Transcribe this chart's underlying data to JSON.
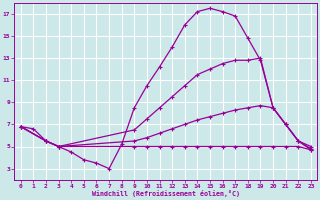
{
  "background_color": "#cce8e8",
  "grid_color": "#ffffff",
  "line_color": "#990099",
  "xlabel": "Windchill (Refroidissement éolien,°C)",
  "xlim": [
    -0.5,
    23.5
  ],
  "ylim": [
    2.0,
    18.0
  ],
  "xticks": [
    0,
    1,
    2,
    3,
    4,
    5,
    6,
    7,
    8,
    9,
    10,
    11,
    12,
    13,
    14,
    15,
    16,
    17,
    18,
    19,
    20,
    21,
    22,
    23
  ],
  "yticks": [
    3,
    5,
    7,
    9,
    11,
    13,
    15,
    17
  ],
  "curve1_x": [
    0,
    1,
    2,
    3,
    4,
    5,
    6,
    7,
    8,
    9,
    10,
    11,
    12,
    13,
    14,
    15,
    16,
    17,
    18,
    19,
    20,
    21,
    22,
    23
  ],
  "curve1_y": [
    6.8,
    6.6,
    5.5,
    5.0,
    4.5,
    3.8,
    3.5,
    3.0,
    5.2,
    8.5,
    10.5,
    12.2,
    14.0,
    16.0,
    17.2,
    17.5,
    17.2,
    16.8,
    14.8,
    12.8,
    8.5,
    7.0,
    5.5,
    4.7
  ],
  "curve2_x": [
    0,
    2,
    3,
    9,
    10,
    11,
    12,
    13,
    14,
    15,
    16,
    17,
    18,
    19,
    20,
    21,
    22,
    23
  ],
  "curve2_y": [
    6.8,
    5.5,
    5.0,
    6.5,
    7.5,
    8.5,
    9.5,
    10.5,
    11.5,
    12.0,
    12.5,
    12.8,
    12.8,
    13.0,
    8.5,
    7.0,
    5.5,
    4.8
  ],
  "curve3_x": [
    0,
    2,
    3,
    9,
    10,
    11,
    12,
    13,
    14,
    15,
    16,
    17,
    18,
    19,
    20,
    21,
    22,
    23
  ],
  "curve3_y": [
    6.8,
    5.5,
    5.0,
    5.5,
    5.8,
    6.2,
    6.6,
    7.0,
    7.4,
    7.7,
    8.0,
    8.3,
    8.5,
    8.7,
    8.5,
    7.0,
    5.5,
    5.0
  ],
  "curve4_x": [
    0,
    2,
    3,
    9,
    10,
    11,
    12,
    13,
    14,
    15,
    16,
    17,
    18,
    19,
    20,
    21,
    22,
    23
  ],
  "curve4_y": [
    6.8,
    5.5,
    5.0,
    5.0,
    5.0,
    5.0,
    5.0,
    5.0,
    5.0,
    5.0,
    5.0,
    5.0,
    5.0,
    5.0,
    5.0,
    5.0,
    5.0,
    4.7
  ]
}
